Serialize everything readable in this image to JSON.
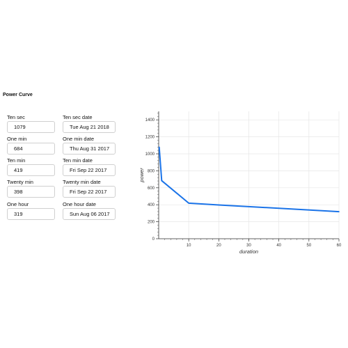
{
  "page": {
    "title": "Power Curve"
  },
  "fields": [
    {
      "label": "Ten sec",
      "value": "1079",
      "date_label": "Ten sec date",
      "date_value": "Tue Aug 21 2018"
    },
    {
      "label": "One min",
      "value": "684",
      "date_label": "One min date",
      "date_value": "Thu Aug 31 2017"
    },
    {
      "label": "Ten min",
      "value": "419",
      "date_label": "Ten min date",
      "date_value": "Fri Sep 22 2017"
    },
    {
      "label": "Twenty min",
      "value": "398",
      "date_label": "Twenty min date",
      "date_value": "Fri Sep 22 2017"
    },
    {
      "label": "One hour",
      "value": "319",
      "date_label": "One hour date",
      "date_value": "Sun Aug 06 2017"
    }
  ],
  "chart_data": {
    "type": "line",
    "xlabel": "duration",
    "ylabel": "power",
    "xlim": [
      0,
      60
    ],
    "ylim": [
      0,
      1500
    ],
    "xticks": [
      10,
      20,
      30,
      40,
      50,
      60
    ],
    "yticks": [
      0,
      200,
      400,
      600,
      800,
      1000,
      1200,
      1400
    ],
    "grid": true,
    "color": "#1a73e8",
    "series": [
      {
        "x": [
          0.1667,
          1,
          10,
          20,
          60
        ],
        "y": [
          1079,
          684,
          419,
          398,
          319
        ]
      }
    ]
  }
}
